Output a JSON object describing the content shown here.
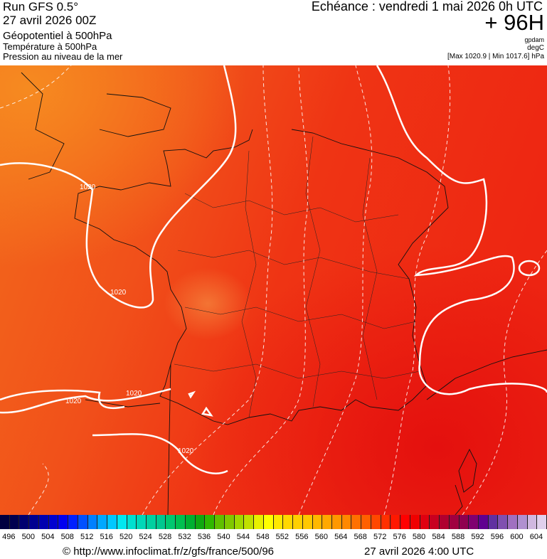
{
  "header": {
    "run": "Run GFS 0.5°",
    "run_date": "27 avril 2026 00Z",
    "field1": "Géopotentiel à 500hPa",
    "field2": "Température à 500hPa",
    "field3": "Pression au niveau de la mer",
    "valid": "Echéance : vendredi 1 mai 2026 0h UTC",
    "lead": "+ 96H",
    "unit1": "gpdam",
    "unit2": "degC",
    "pressure_range": "[Max 1020.9 | Min 1017.6] hPa"
  },
  "map": {
    "isobar_labels": [
      "1020",
      "1020",
      "1020",
      "1020",
      "1020"
    ],
    "colors": {
      "west": "#f36a1c",
      "center": "#f14a14",
      "east": "#ee2a12",
      "southeast": "#e81410",
      "contour": "#ffffff"
    }
  },
  "colorbar": {
    "labels": [
      "496",
      "500",
      "504",
      "508",
      "512",
      "516",
      "520",
      "524",
      "528",
      "532",
      "536",
      "540",
      "544",
      "548",
      "552",
      "556",
      "560",
      "564",
      "568",
      "572",
      "576",
      "580",
      "584",
      "588",
      "592",
      "596",
      "600",
      "604"
    ],
    "colors": [
      "#000040",
      "#000050",
      "#000070",
      "#000090",
      "#0000b0",
      "#0000d0",
      "#0000f0",
      "#0020ff",
      "#0050ff",
      "#0080ff",
      "#00a8ff",
      "#00c8ff",
      "#00e8f0",
      "#00e0d0",
      "#00d8b8",
      "#00d0a0",
      "#00c890",
      "#00c870",
      "#00c050",
      "#00b030",
      "#10a810",
      "#30b800",
      "#60c000",
      "#80c800",
      "#a0d800",
      "#c0e000",
      "#e8f000",
      "#ffff00",
      "#ffe800",
      "#ffd800",
      "#ffd000",
      "#ffc800",
      "#ffb800",
      "#ffa800",
      "#ff9800",
      "#ff8800",
      "#ff7000",
      "#ff6000",
      "#ff4800",
      "#ff3000",
      "#ff1800",
      "#ff0000",
      "#f00000",
      "#e00010",
      "#c80020",
      "#b00030",
      "#a00040",
      "#900050",
      "#800070",
      "#600090",
      "#6030a0",
      "#8050b0",
      "#a070c0",
      "#b090d0",
      "#d0b8e0",
      "#e0d0ec"
    ]
  },
  "footer": {
    "credit": "© http://www.infoclimat.fr/z/gfs/france/500/96",
    "generated": "27 avril 2026  4:00 UTC"
  }
}
